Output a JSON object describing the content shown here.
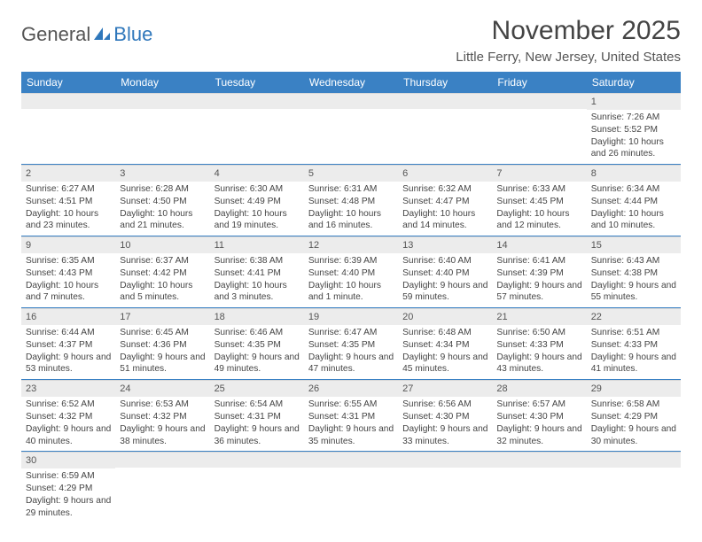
{
  "logo": {
    "text1": "General",
    "text2": "Blue"
  },
  "title": "November 2025",
  "location": "Little Ferry, New Jersey, United States",
  "colors": {
    "header_bg": "#3a81c4",
    "header_text": "#ffffff",
    "daynum_bg": "#ececec",
    "border": "#3a81c4",
    "logo_accent": "#2f77bb"
  },
  "weekdays": [
    "Sunday",
    "Monday",
    "Tuesday",
    "Wednesday",
    "Thursday",
    "Friday",
    "Saturday"
  ],
  "weeks": [
    [
      {
        "day": "",
        "sunrise": "",
        "sunset": "",
        "daylight": ""
      },
      {
        "day": "",
        "sunrise": "",
        "sunset": "",
        "daylight": ""
      },
      {
        "day": "",
        "sunrise": "",
        "sunset": "",
        "daylight": ""
      },
      {
        "day": "",
        "sunrise": "",
        "sunset": "",
        "daylight": ""
      },
      {
        "day": "",
        "sunrise": "",
        "sunset": "",
        "daylight": ""
      },
      {
        "day": "",
        "sunrise": "",
        "sunset": "",
        "daylight": ""
      },
      {
        "day": "1",
        "sunrise": "Sunrise: 7:26 AM",
        "sunset": "Sunset: 5:52 PM",
        "daylight": "Daylight: 10 hours and 26 minutes."
      }
    ],
    [
      {
        "day": "2",
        "sunrise": "Sunrise: 6:27 AM",
        "sunset": "Sunset: 4:51 PM",
        "daylight": "Daylight: 10 hours and 23 minutes."
      },
      {
        "day": "3",
        "sunrise": "Sunrise: 6:28 AM",
        "sunset": "Sunset: 4:50 PM",
        "daylight": "Daylight: 10 hours and 21 minutes."
      },
      {
        "day": "4",
        "sunrise": "Sunrise: 6:30 AM",
        "sunset": "Sunset: 4:49 PM",
        "daylight": "Daylight: 10 hours and 19 minutes."
      },
      {
        "day": "5",
        "sunrise": "Sunrise: 6:31 AM",
        "sunset": "Sunset: 4:48 PM",
        "daylight": "Daylight: 10 hours and 16 minutes."
      },
      {
        "day": "6",
        "sunrise": "Sunrise: 6:32 AM",
        "sunset": "Sunset: 4:47 PM",
        "daylight": "Daylight: 10 hours and 14 minutes."
      },
      {
        "day": "7",
        "sunrise": "Sunrise: 6:33 AM",
        "sunset": "Sunset: 4:45 PM",
        "daylight": "Daylight: 10 hours and 12 minutes."
      },
      {
        "day": "8",
        "sunrise": "Sunrise: 6:34 AM",
        "sunset": "Sunset: 4:44 PM",
        "daylight": "Daylight: 10 hours and 10 minutes."
      }
    ],
    [
      {
        "day": "9",
        "sunrise": "Sunrise: 6:35 AM",
        "sunset": "Sunset: 4:43 PM",
        "daylight": "Daylight: 10 hours and 7 minutes."
      },
      {
        "day": "10",
        "sunrise": "Sunrise: 6:37 AM",
        "sunset": "Sunset: 4:42 PM",
        "daylight": "Daylight: 10 hours and 5 minutes."
      },
      {
        "day": "11",
        "sunrise": "Sunrise: 6:38 AM",
        "sunset": "Sunset: 4:41 PM",
        "daylight": "Daylight: 10 hours and 3 minutes."
      },
      {
        "day": "12",
        "sunrise": "Sunrise: 6:39 AM",
        "sunset": "Sunset: 4:40 PM",
        "daylight": "Daylight: 10 hours and 1 minute."
      },
      {
        "day": "13",
        "sunrise": "Sunrise: 6:40 AM",
        "sunset": "Sunset: 4:40 PM",
        "daylight": "Daylight: 9 hours and 59 minutes."
      },
      {
        "day": "14",
        "sunrise": "Sunrise: 6:41 AM",
        "sunset": "Sunset: 4:39 PM",
        "daylight": "Daylight: 9 hours and 57 minutes."
      },
      {
        "day": "15",
        "sunrise": "Sunrise: 6:43 AM",
        "sunset": "Sunset: 4:38 PM",
        "daylight": "Daylight: 9 hours and 55 minutes."
      }
    ],
    [
      {
        "day": "16",
        "sunrise": "Sunrise: 6:44 AM",
        "sunset": "Sunset: 4:37 PM",
        "daylight": "Daylight: 9 hours and 53 minutes."
      },
      {
        "day": "17",
        "sunrise": "Sunrise: 6:45 AM",
        "sunset": "Sunset: 4:36 PM",
        "daylight": "Daylight: 9 hours and 51 minutes."
      },
      {
        "day": "18",
        "sunrise": "Sunrise: 6:46 AM",
        "sunset": "Sunset: 4:35 PM",
        "daylight": "Daylight: 9 hours and 49 minutes."
      },
      {
        "day": "19",
        "sunrise": "Sunrise: 6:47 AM",
        "sunset": "Sunset: 4:35 PM",
        "daylight": "Daylight: 9 hours and 47 minutes."
      },
      {
        "day": "20",
        "sunrise": "Sunrise: 6:48 AM",
        "sunset": "Sunset: 4:34 PM",
        "daylight": "Daylight: 9 hours and 45 minutes."
      },
      {
        "day": "21",
        "sunrise": "Sunrise: 6:50 AM",
        "sunset": "Sunset: 4:33 PM",
        "daylight": "Daylight: 9 hours and 43 minutes."
      },
      {
        "day": "22",
        "sunrise": "Sunrise: 6:51 AM",
        "sunset": "Sunset: 4:33 PM",
        "daylight": "Daylight: 9 hours and 41 minutes."
      }
    ],
    [
      {
        "day": "23",
        "sunrise": "Sunrise: 6:52 AM",
        "sunset": "Sunset: 4:32 PM",
        "daylight": "Daylight: 9 hours and 40 minutes."
      },
      {
        "day": "24",
        "sunrise": "Sunrise: 6:53 AM",
        "sunset": "Sunset: 4:32 PM",
        "daylight": "Daylight: 9 hours and 38 minutes."
      },
      {
        "day": "25",
        "sunrise": "Sunrise: 6:54 AM",
        "sunset": "Sunset: 4:31 PM",
        "daylight": "Daylight: 9 hours and 36 minutes."
      },
      {
        "day": "26",
        "sunrise": "Sunrise: 6:55 AM",
        "sunset": "Sunset: 4:31 PM",
        "daylight": "Daylight: 9 hours and 35 minutes."
      },
      {
        "day": "27",
        "sunrise": "Sunrise: 6:56 AM",
        "sunset": "Sunset: 4:30 PM",
        "daylight": "Daylight: 9 hours and 33 minutes."
      },
      {
        "day": "28",
        "sunrise": "Sunrise: 6:57 AM",
        "sunset": "Sunset: 4:30 PM",
        "daylight": "Daylight: 9 hours and 32 minutes."
      },
      {
        "day": "29",
        "sunrise": "Sunrise: 6:58 AM",
        "sunset": "Sunset: 4:29 PM",
        "daylight": "Daylight: 9 hours and 30 minutes."
      }
    ],
    [
      {
        "day": "30",
        "sunrise": "Sunrise: 6:59 AM",
        "sunset": "Sunset: 4:29 PM",
        "daylight": "Daylight: 9 hours and 29 minutes."
      },
      {
        "day": "",
        "sunrise": "",
        "sunset": "",
        "daylight": ""
      },
      {
        "day": "",
        "sunrise": "",
        "sunset": "",
        "daylight": ""
      },
      {
        "day": "",
        "sunrise": "",
        "sunset": "",
        "daylight": ""
      },
      {
        "day": "",
        "sunrise": "",
        "sunset": "",
        "daylight": ""
      },
      {
        "day": "",
        "sunrise": "",
        "sunset": "",
        "daylight": ""
      },
      {
        "day": "",
        "sunrise": "",
        "sunset": "",
        "daylight": ""
      }
    ]
  ]
}
